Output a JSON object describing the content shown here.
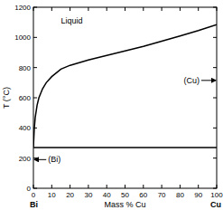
{
  "chart_data": {
    "type": "line",
    "xlabel": "Mass % Cu",
    "ylabel": "T (°C)",
    "component_labels": [
      "Bi",
      "Cu"
    ],
    "xlim": [
      0,
      100
    ],
    "ylim": [
      0,
      1200
    ],
    "xticks": [
      0,
      10,
      20,
      30,
      40,
      50,
      60,
      70,
      80,
      90,
      100
    ],
    "yticks": [
      0,
      200,
      400,
      600,
      800,
      1000,
      1200
    ],
    "grid": false,
    "series": [
      {
        "color": "#000000",
        "x": [
          0,
          0.5,
          1,
          2,
          3,
          5,
          7,
          10,
          15,
          20,
          30,
          40,
          50,
          60,
          70,
          80,
          90,
          100
        ],
        "values": [
          271,
          400,
          470,
          550,
          600,
          660,
          700,
          740,
          790,
          815,
          850,
          880,
          910,
          940,
          975,
          1010,
          1045,
          1085
        ]
      },
      {
        "color": "#000000",
        "x": [
          0,
          100
        ],
        "values": [
          270,
          270
        ]
      }
    ],
    "annotations": [
      {
        "text": "Liquid",
        "x": 15,
        "y": 1110
      },
      {
        "text": "(Cu)",
        "x": 82,
        "y": 715,
        "marker": "arrow"
      },
      {
        "text": "(Bi)",
        "x": 8,
        "y": 190,
        "marker": "arrow"
      }
    ]
  }
}
